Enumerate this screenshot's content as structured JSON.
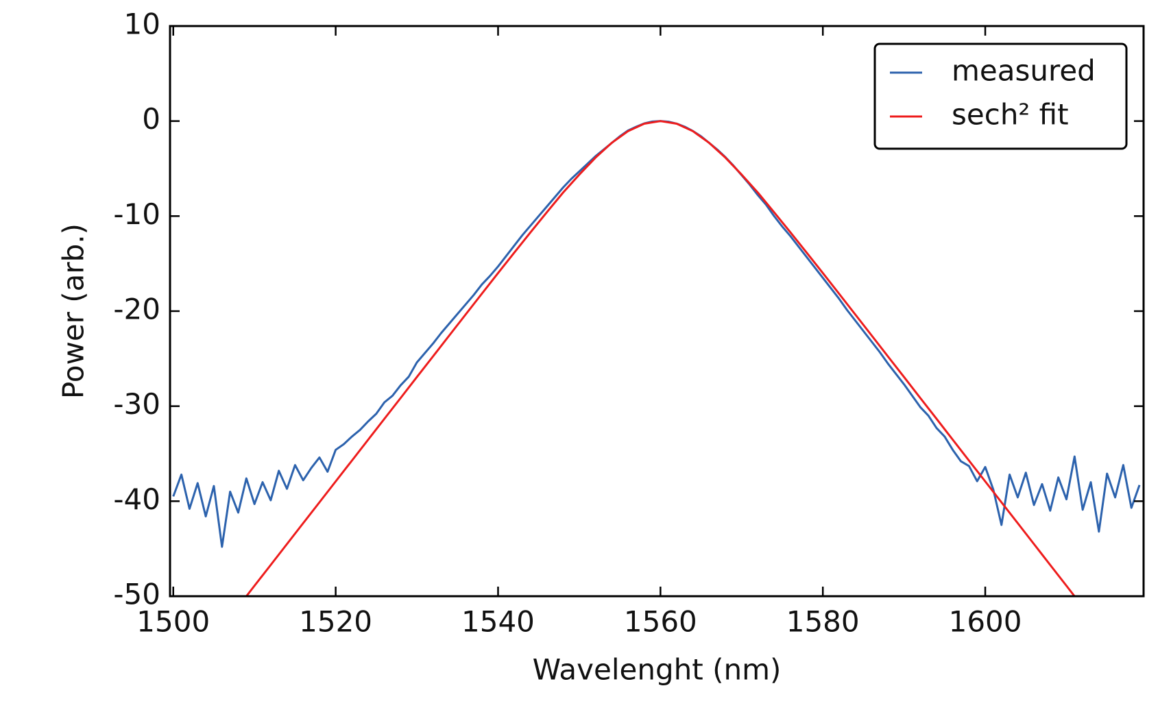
{
  "chart_data": {
    "type": "line",
    "x_label": "Wavelenght (nm)",
    "y_label": "Power (arb.)",
    "xlim": [
      1499.6,
      1619.5
    ],
    "ylim": [
      -50,
      10
    ],
    "xticks": [
      1500,
      1520,
      1540,
      1560,
      1580,
      1600
    ],
    "yticks": [
      -50,
      -40,
      -30,
      -20,
      -10,
      0,
      10
    ],
    "legend": "upper right",
    "series": [
      {
        "name": "measured",
        "color": "#2c62ad",
        "x": [
          1500,
          1501,
          1502,
          1503,
          1504,
          1505,
          1506,
          1507,
          1508,
          1509,
          1510,
          1511,
          1512,
          1513,
          1514,
          1515,
          1516,
          1517,
          1518,
          1519,
          1520,
          1521,
          1522,
          1523,
          1524,
          1525,
          1526,
          1527,
          1528,
          1529,
          1530,
          1531,
          1532,
          1533,
          1534,
          1535,
          1536,
          1537,
          1538,
          1539,
          1540,
          1541,
          1542,
          1543,
          1544,
          1545,
          1546,
          1547,
          1548,
          1549,
          1550,
          1551,
          1552,
          1553,
          1554,
          1555,
          1556,
          1557,
          1558,
          1559,
          1560,
          1561,
          1562,
          1563,
          1564,
          1565,
          1566,
          1567,
          1568,
          1569,
          1570,
          1571,
          1572,
          1573,
          1574,
          1575,
          1576,
          1577,
          1578,
          1579,
          1580,
          1581,
          1582,
          1583,
          1584,
          1585,
          1586,
          1587,
          1588,
          1589,
          1590,
          1591,
          1592,
          1593,
          1594,
          1595,
          1596,
          1597,
          1598,
          1599,
          1600,
          1601,
          1602,
          1603,
          1604,
          1605,
          1606,
          1607,
          1608,
          1609,
          1610,
          1611,
          1612,
          1613,
          1614,
          1615,
          1616,
          1617,
          1618,
          1619
        ],
        "values": [
          -39.5,
          -37.2,
          -40.8,
          -38.1,
          -41.6,
          -38.4,
          -44.8,
          -39.0,
          -41.2,
          -37.6,
          -40.3,
          -38.0,
          -39.9,
          -36.8,
          -38.7,
          -36.2,
          -37.8,
          -36.5,
          -35.4,
          -36.9,
          -34.6,
          -34.0,
          -33.2,
          -32.5,
          -31.6,
          -30.8,
          -29.6,
          -28.9,
          -27.8,
          -26.9,
          -25.4,
          -24.4,
          -23.4,
          -22.3,
          -21.3,
          -20.3,
          -19.3,
          -18.3,
          -17.2,
          -16.3,
          -15.3,
          -14.2,
          -13.1,
          -12.0,
          -11.0,
          -10.0,
          -9.0,
          -8.0,
          -7.0,
          -6.1,
          -5.3,
          -4.5,
          -3.7,
          -3.0,
          -2.3,
          -1.6,
          -1.0,
          -0.6,
          -0.25,
          -0.05,
          0,
          -0.07,
          -0.27,
          -0.6,
          -1.05,
          -1.6,
          -2.3,
          -3.0,
          -3.8,
          -4.7,
          -5.7,
          -6.7,
          -7.8,
          -8.8,
          -10.0,
          -11.1,
          -12.1,
          -13.2,
          -14.3,
          -15.4,
          -16.5,
          -17.6,
          -18.7,
          -19.9,
          -21.0,
          -22.1,
          -23.2,
          -24.3,
          -25.5,
          -26.6,
          -27.7,
          -28.9,
          -30.1,
          -31.0,
          -32.3,
          -33.2,
          -34.6,
          -35.8,
          -36.3,
          -37.9,
          -36.4,
          -38.8,
          -42.5,
          -37.2,
          -39.6,
          -37.0,
          -40.4,
          -38.2,
          -41.0,
          -37.5,
          -39.8,
          -35.3,
          -40.9,
          -38.0,
          -43.2,
          -37.1,
          -39.6,
          -36.2,
          -40.7,
          -38.3
        ]
      },
      {
        "name": "sech² fit",
        "color": "#ee1c1c",
        "x": [
          1509,
          1510,
          1512,
          1514,
          1516,
          1518,
          1520,
          1522,
          1524,
          1526,
          1528,
          1530,
          1532,
          1534,
          1536,
          1538,
          1540,
          1542,
          1544,
          1546,
          1548,
          1550,
          1552,
          1554,
          1556,
          1558,
          1560,
          1562,
          1564,
          1566,
          1568,
          1570,
          1572,
          1574,
          1576,
          1578,
          1580,
          1582,
          1584,
          1586,
          1588,
          1590,
          1592,
          1594,
          1596,
          1598,
          1600,
          1602,
          1604,
          1606,
          1608,
          1610,
          1611
        ],
        "values": [
          -50.0,
          -48.9,
          -46.71,
          -44.51,
          -42.31,
          -40.12,
          -37.92,
          -35.73,
          -33.53,
          -31.33,
          -29.14,
          -26.94,
          -24.75,
          -22.55,
          -20.36,
          -18.17,
          -15.99,
          -13.84,
          -11.7,
          -9.6,
          -7.534,
          -5.637,
          -3.849,
          -2.293,
          -1.066,
          -0.275,
          0,
          -0.275,
          -1.066,
          -2.293,
          -3.849,
          -5.637,
          -7.534,
          -9.6,
          -11.7,
          -13.84,
          -15.99,
          -18.17,
          -20.36,
          -22.55,
          -24.75,
          -26.94,
          -29.14,
          -31.33,
          -33.53,
          -35.73,
          -37.92,
          -40.12,
          -42.31,
          -44.51,
          -46.71,
          -48.9,
          -50.0
        ]
      }
    ]
  }
}
